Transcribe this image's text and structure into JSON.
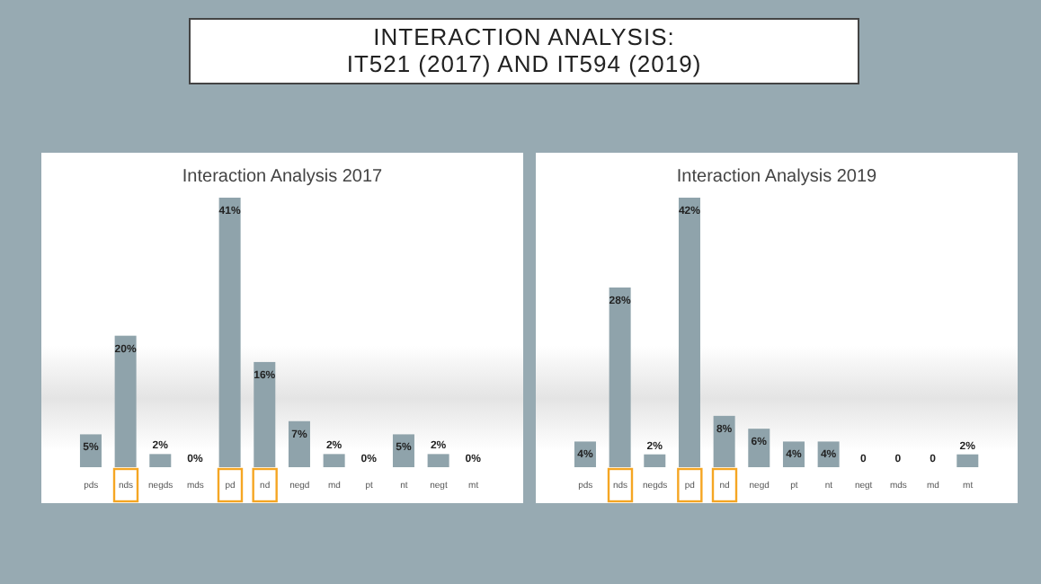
{
  "chart_data": [
    {
      "type": "bar",
      "title": "Interaction Analysis 2017",
      "annotations": [
        "INTERACTION ANALYSIS:",
        "IT521  (2017) AND IT594 (2019)"
      ],
      "categories": [
        "pds",
        "nds",
        "negds",
        "mds",
        "pd",
        "nd",
        "negd",
        "md",
        "pt",
        "nt",
        "negt",
        "mt"
      ],
      "values": [
        5,
        20,
        2,
        0,
        41,
        16,
        7,
        2,
        0,
        5,
        2,
        0
      ],
      "value_labels": [
        "5%",
        "20%",
        "2%",
        "0%",
        "41%",
        "16%",
        "7%",
        "2%",
        "0%",
        "5%",
        "2%",
        "0%"
      ],
      "color": "#8fa3ab",
      "grid": false,
      "legend": false,
      "tick_labels": "x"
    },
    {
      "type": "bar",
      "title": "Interaction Analysis 2019",
      "categories": [
        "pds",
        "nds",
        "negds",
        "pd",
        "nd",
        "negd",
        "pt",
        "nt",
        "negt",
        "mds",
        "md",
        "mt"
      ],
      "values": [
        4,
        28,
        2,
        42,
        8,
        6,
        4,
        4,
        0,
        0,
        0,
        2
      ],
      "value_labels": [
        "4%",
        "28%",
        "2%",
        "42%",
        "8%",
        "6%",
        "4%",
        "4%",
        "0",
        "0",
        "0",
        "2%"
      ],
      "color": "#8fa3ab",
      "grid": false,
      "legend": false,
      "tick_labels": "x"
    }
  ]
}
